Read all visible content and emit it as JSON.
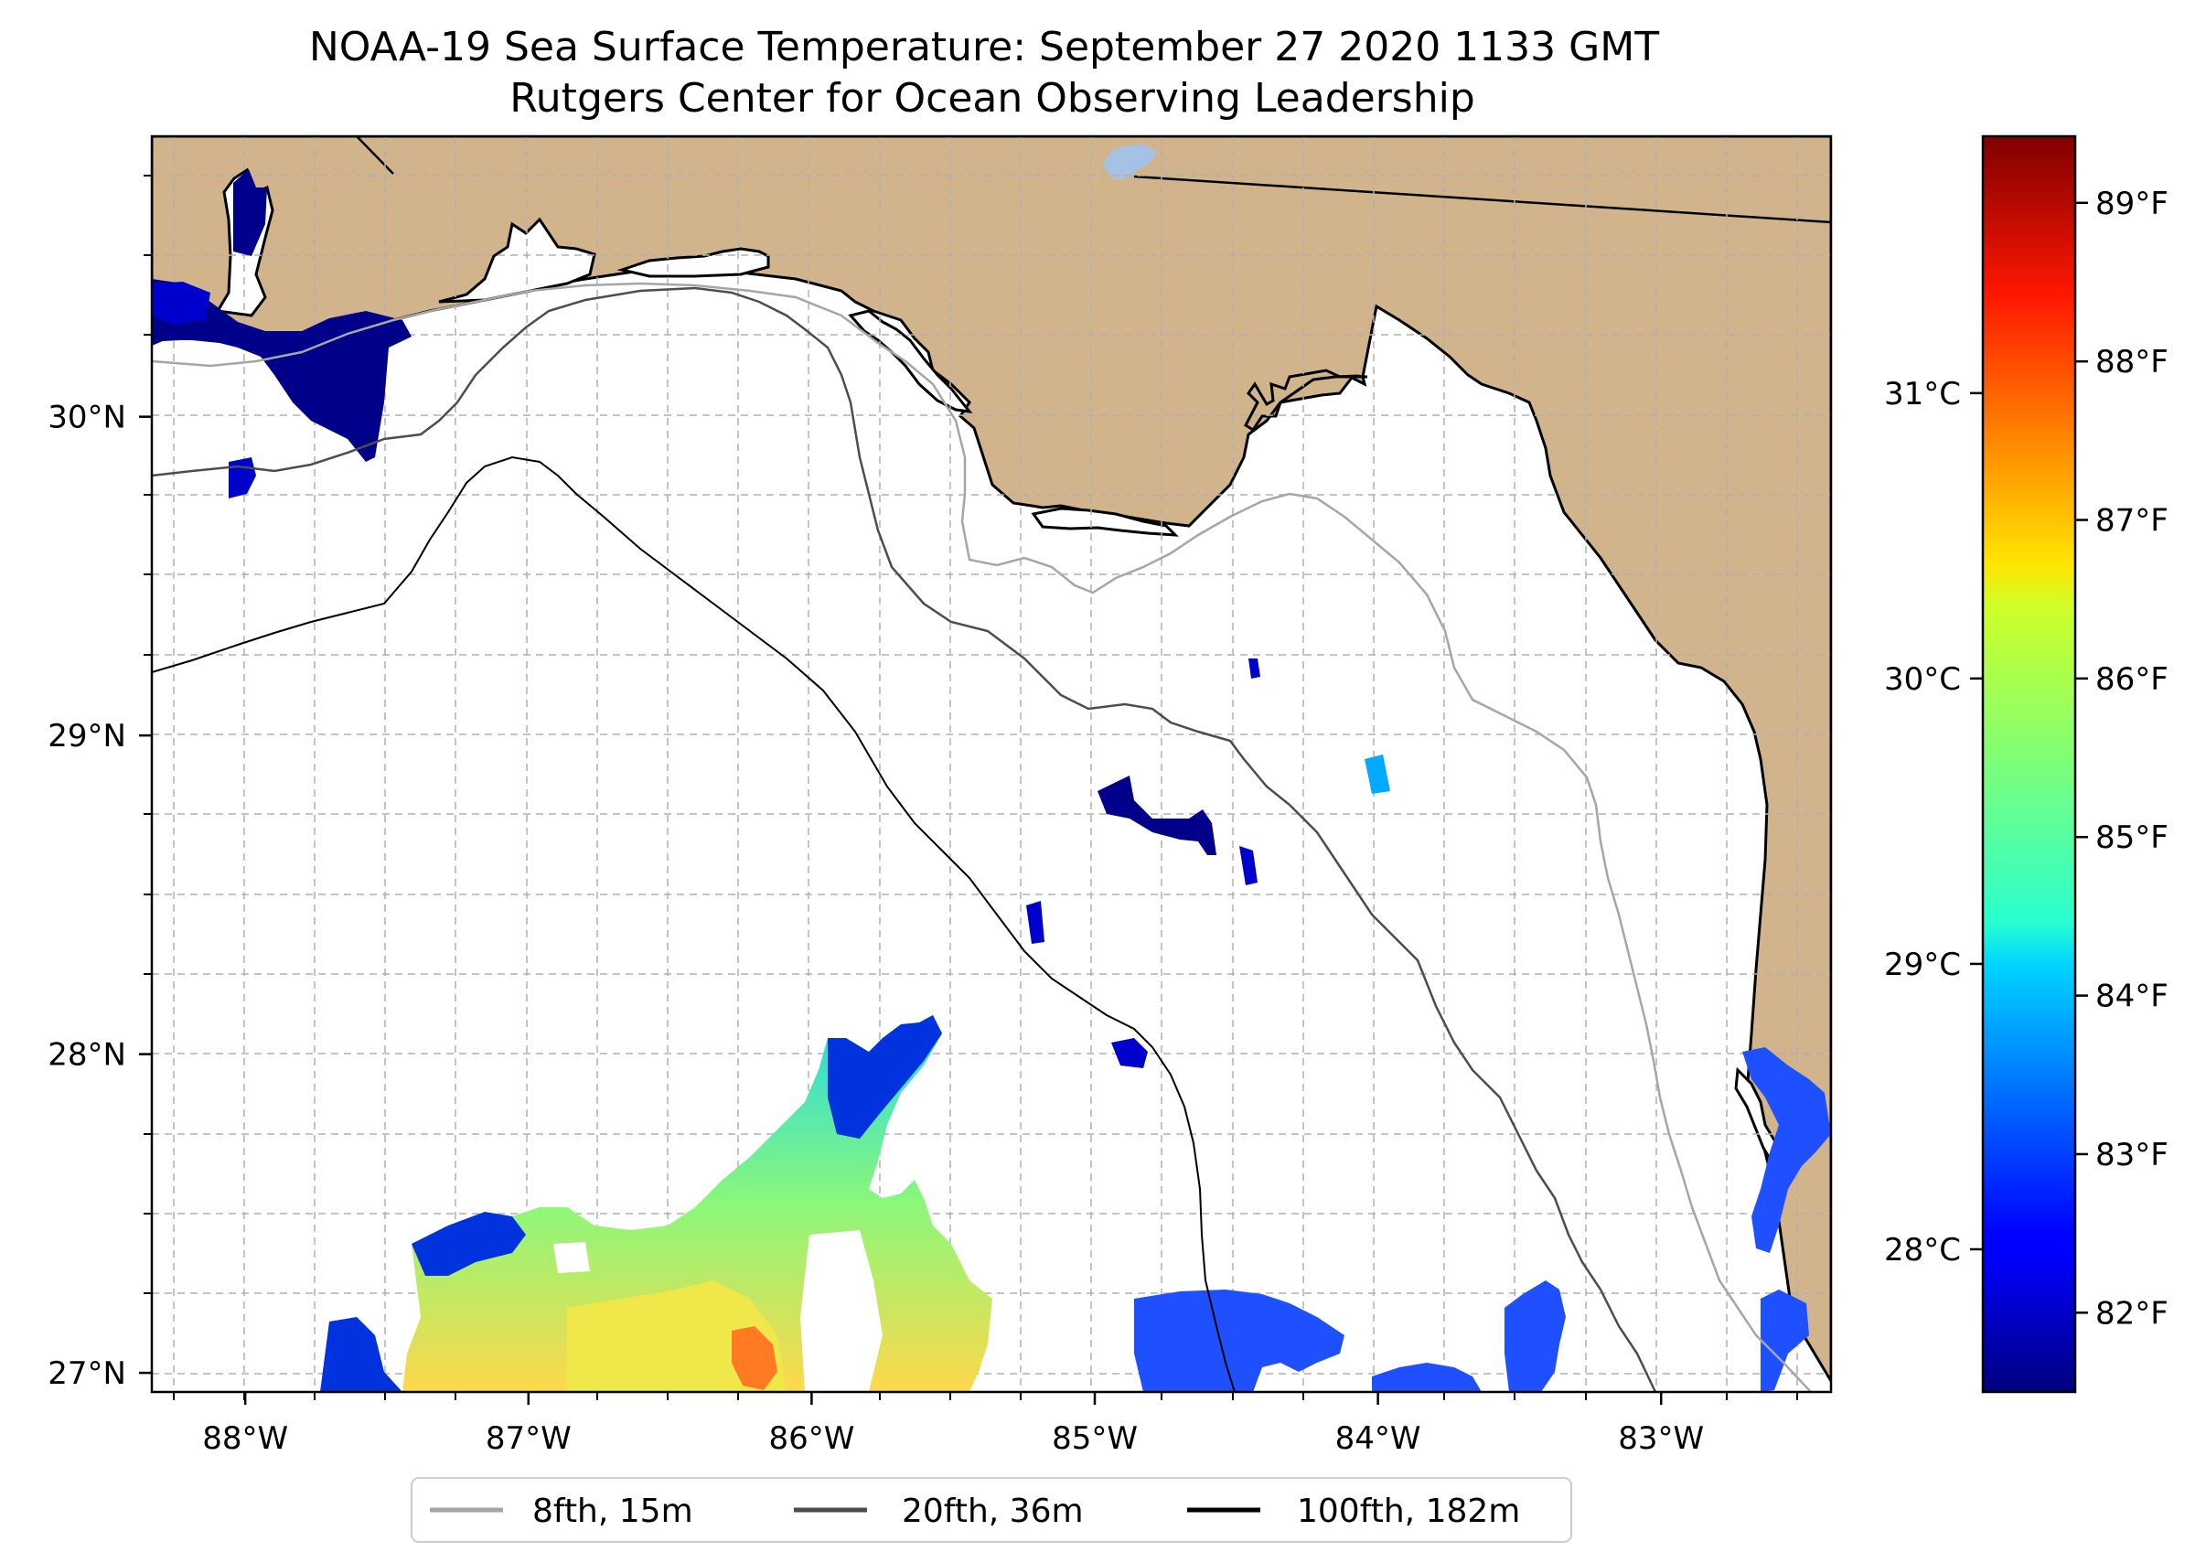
{
  "title": {
    "line1": "NOAA-19 Sea Surface Temperature: September 27 2020 1133 GMT",
    "line2": "Rutgers Center for Ocean Observing Leadership"
  },
  "map": {
    "lon_range": [
      -88.33,
      -82.4
    ],
    "lat_range": [
      26.94,
      30.88
    ],
    "lon_ticks": [
      {
        "value": -88,
        "label": "88°W"
      },
      {
        "value": -87,
        "label": "87°W"
      },
      {
        "value": -86,
        "label": "86°W"
      },
      {
        "value": -85,
        "label": "85°W"
      },
      {
        "value": -84,
        "label": "84°W"
      },
      {
        "value": -83,
        "label": "83°W"
      }
    ],
    "lat_ticks": [
      {
        "value": 27,
        "label": "27°N"
      },
      {
        "value": 28,
        "label": "28°N"
      },
      {
        "value": 29,
        "label": "29°N"
      },
      {
        "value": 30,
        "label": "30°N"
      }
    ],
    "grid": true,
    "colors": {
      "land": "#d2b48c",
      "ocean": "#ffffff",
      "lake": "#a6c1e6",
      "grid": "#b0b0b0"
    }
  },
  "legend": {
    "placement": "bottom-center",
    "entries": [
      {
        "label": "8fth, 15m",
        "color": "#a6a6a6"
      },
      {
        "label": "20fth, 36m",
        "color": "#4d4d4d"
      },
      {
        "label": "100fth, 182m",
        "color": "#000000"
      }
    ]
  },
  "colorbar": {
    "colormap": "jet",
    "range_c": [
      27.5,
      31.9
    ],
    "celsius_ticks": [
      {
        "value": 28,
        "label": "28°C"
      },
      {
        "value": 29,
        "label": "29°C"
      },
      {
        "value": 30,
        "label": "30°C"
      },
      {
        "value": 31,
        "label": "31°C"
      }
    ],
    "fahrenheit_ticks": [
      {
        "value": 82,
        "label": "82°F"
      },
      {
        "value": 83,
        "label": "83°F"
      },
      {
        "value": 84,
        "label": "84°F"
      },
      {
        "value": 85,
        "label": "85°F"
      },
      {
        "value": 86,
        "label": "86°F"
      },
      {
        "value": 87,
        "label": "87°F"
      },
      {
        "value": 88,
        "label": "88°F"
      },
      {
        "value": 89,
        "label": "89°F"
      }
    ]
  }
}
